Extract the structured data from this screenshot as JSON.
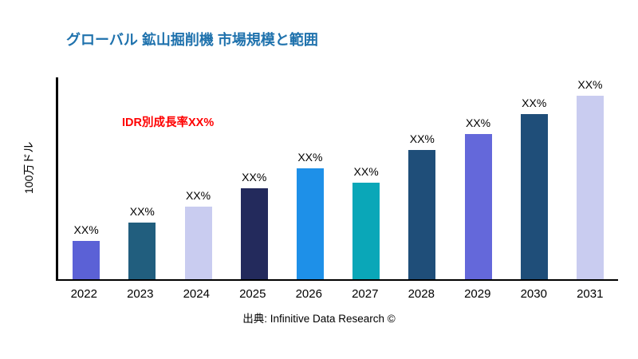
{
  "chart_data": {
    "type": "bar",
    "title": "グローバル 鉱山掘削機 市場規模と範囲",
    "ylabel": "100万ドル",
    "annotation": "IDR別成長率XX%",
    "annotation_color": "#ff0000",
    "title_color": "#1f72ad",
    "source": "出典: Infinitive Data Research ©",
    "bar_label": "XX%",
    "categories": [
      "2022",
      "2023",
      "2024",
      "2025",
      "2026",
      "2027",
      "2028",
      "2029",
      "2030",
      "2031"
    ],
    "values": [
      19,
      28,
      36,
      45,
      55,
      48,
      64,
      72,
      82,
      91
    ],
    "colors": [
      "#5b61d6",
      "#215e7e",
      "#c9ccf0",
      "#232a5c",
      "#1e90e8",
      "#0aa7b8",
      "#1f4e79",
      "#6468da",
      "#1f4e79",
      "#c9ccf0"
    ],
    "ylim": [
      0,
      100
    ],
    "grid": false,
    "legend": false
  }
}
